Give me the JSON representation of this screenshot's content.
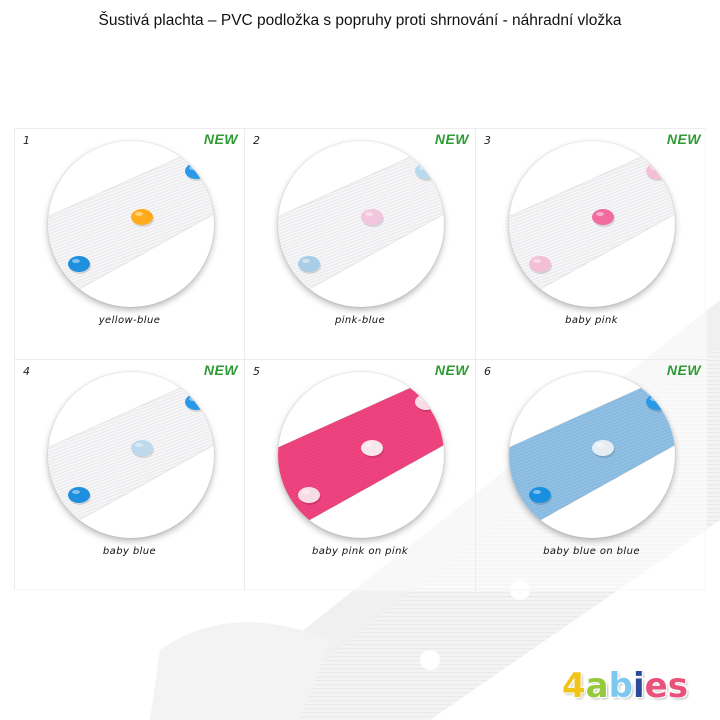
{
  "title": "Šustivá plachta – PVC podložka s popruhy proti shrnování - náhradní vložka",
  "badge_label": "NEW",
  "items": [
    {
      "number": "1",
      "caption": "yellow-blue",
      "strap_color": "#f6f6f8",
      "snap_front": "#ffab1a",
      "snap_back": "#1f8fe0",
      "snap_corner": "#2a9ae8"
    },
    {
      "number": "2",
      "caption": "pink-blue",
      "strap_color": "#f6f6f8",
      "snap_front": "#f3c4dd",
      "snap_back": "#a8cde6",
      "snap_corner": "#b8d8ee"
    },
    {
      "number": "3",
      "caption": "baby pink",
      "strap_color": "#f6f6f8",
      "snap_front": "#f06ba0",
      "snap_back": "#f3bfd6",
      "snap_corner": "#f3bfd6"
    },
    {
      "number": "4",
      "caption": "baby blue",
      "strap_color": "#f6f6f8",
      "snap_front": "#bcd9ee",
      "snap_back": "#1f8fe0",
      "snap_corner": "#2a9ae8"
    },
    {
      "number": "5",
      "caption": "baby pink on pink",
      "strap_color": "#f0437f",
      "snap_front": "#f8e6ec",
      "snap_back": "#f8dde6",
      "snap_corner": "#f8dde6"
    },
    {
      "number": "6",
      "caption": "baby blue on blue",
      "strap_color": "#8fc0e6",
      "snap_front": "#e6eef4",
      "snap_back": "#1a8fe0",
      "snap_corner": "#2a9ae8"
    }
  ],
  "logo": {
    "letters": [
      {
        "char": "4",
        "color": "#f0c419"
      },
      {
        "char": "a",
        "color": "#97c93d"
      },
      {
        "char": "b",
        "color": "#7cc8ef"
      },
      {
        "char": "i",
        "color": "#2c4a9a"
      },
      {
        "char": "e",
        "color": "#e8517a"
      },
      {
        "char": "s",
        "color": "#e8517a"
      }
    ]
  }
}
